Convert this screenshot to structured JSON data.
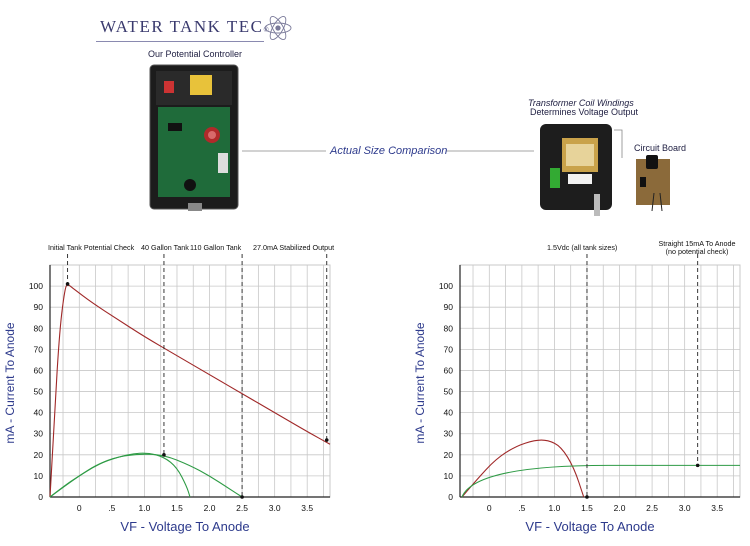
{
  "header": {
    "brand": "WATER TANK TEC",
    "brand_suffix": "®",
    "potential_controller_caption": "Our Potential Controller",
    "comparison_label": "Actual Size Comparison",
    "transformer_caption_line1": "Transformer Coil Windings",
    "transformer_caption_line2": "Determines Voltage Output",
    "circuit_board_caption": "Circuit Board"
  },
  "colors": {
    "grid": "#c8c8c8",
    "axis": "#222222",
    "red_curve": "#a02828",
    "green_curve": "#2e9b45",
    "axis_label": "#2d3a8c",
    "dashed": "#222222"
  },
  "chart_data": [
    {
      "type": "line",
      "xlabel": "VF - Voltage To Anode",
      "ylabel": "mA - Current To Anode",
      "x_ticks": [
        "0",
        ".5",
        "1.0",
        "1.5",
        "2.0",
        "2.5",
        "3.0",
        "3.5"
      ],
      "x_tick_values": [
        0,
        0.5,
        1.0,
        1.5,
        2.0,
        2.5,
        3.0,
        3.5
      ],
      "y_ticks": [
        "0",
        "10",
        "20",
        "30",
        "40",
        "50",
        "60",
        "70",
        "80",
        "90",
        "100"
      ],
      "y_tick_values": [
        0,
        10,
        20,
        30,
        40,
        50,
        60,
        70,
        80,
        90,
        100
      ],
      "xlim": [
        -0.45,
        3.85
      ],
      "ylim": [
        0,
        110
      ],
      "grid": true,
      "series": [
        {
          "color": "red",
          "points": [
            [
              -0.45,
              0
            ],
            [
              -0.38,
              40
            ],
            [
              -0.3,
              80
            ],
            [
              -0.22,
              99
            ],
            [
              -0.18,
              101
            ],
            [
              -0.1,
              99
            ],
            [
              0.2,
              92
            ],
            [
              0.6,
              84
            ],
            [
              1.0,
              76
            ],
            [
              1.5,
              67
            ],
            [
              2.0,
              58
            ],
            [
              2.5,
              49
            ],
            [
              3.0,
              40
            ],
            [
              3.5,
              31
            ],
            [
              3.85,
              25
            ]
          ]
        },
        {
          "color": "green",
          "points": [
            [
              -0.45,
              0
            ],
            [
              -0.2,
              6
            ],
            [
              0,
              10
            ],
            [
              0.25,
              15
            ],
            [
              0.5,
              18
            ],
            [
              0.8,
              20.5
            ],
            [
              1.05,
              21
            ],
            [
              1.3,
              19
            ],
            [
              1.5,
              14
            ],
            [
              1.65,
              5
            ],
            [
              1.7,
              0
            ]
          ]
        },
        {
          "color": "green",
          "points": [
            [
              -0.45,
              0
            ],
            [
              -0.1,
              8
            ],
            [
              0.2,
              14
            ],
            [
              0.5,
              18.5
            ],
            [
              0.9,
              20.5
            ],
            [
              1.3,
              20
            ],
            [
              1.7,
              15
            ],
            [
              2.0,
              10
            ],
            [
              2.3,
              4
            ],
            [
              2.5,
              0
            ]
          ]
        }
      ],
      "annotations": [
        {
          "text": "Initial Tank Potential Check",
          "x": -0.18,
          "y": 101
        },
        {
          "text": "40 Gallon Tank",
          "x": 1.3,
          "y": 20
        },
        {
          "text": "110 Gallon Tank",
          "x": 2.5,
          "y": 0
        },
        {
          "text": "27.0mA Stabilized Output",
          "x": 3.8,
          "y": 27
        }
      ]
    },
    {
      "type": "line",
      "xlabel": "VF - Voltage To Anode",
      "ylabel": "mA - Current To Anode",
      "x_ticks": [
        "0",
        ".5",
        "1.0",
        "1.5",
        "2.0",
        "2.5",
        "3.0",
        "3.5"
      ],
      "x_tick_values": [
        0,
        0.5,
        1.0,
        1.5,
        2.0,
        2.5,
        3.0,
        3.5
      ],
      "y_ticks": [
        "0",
        "10",
        "20",
        "30",
        "40",
        "50",
        "60",
        "70",
        "80",
        "90",
        "100"
      ],
      "y_tick_values": [
        0,
        10,
        20,
        30,
        40,
        50,
        60,
        70,
        80,
        90,
        100
      ],
      "xlim": [
        -0.45,
        3.85
      ],
      "ylim": [
        0,
        110
      ],
      "grid": true,
      "series": [
        {
          "color": "red",
          "points": [
            [
              -0.42,
              0
            ],
            [
              -0.2,
              8
            ],
            [
              0.1,
              18
            ],
            [
              0.4,
              24
            ],
            [
              0.7,
              27
            ],
            [
              0.9,
              27
            ],
            [
              1.1,
              24
            ],
            [
              1.3,
              14
            ],
            [
              1.45,
              0
            ]
          ]
        },
        {
          "color": "green",
          "points": [
            [
              -0.42,
              0
            ],
            [
              -0.22,
              15
            ],
            [
              3.85,
              15
            ]
          ]
        }
      ],
      "annotations": [
        {
          "text": "1.5Vdc (all tank sizes)",
          "x": 1.5,
          "y": 0
        },
        {
          "text": "Straight 15mA To Anode",
          "text2": "(no potential check)",
          "x": 3.2,
          "y": 15
        }
      ]
    }
  ]
}
